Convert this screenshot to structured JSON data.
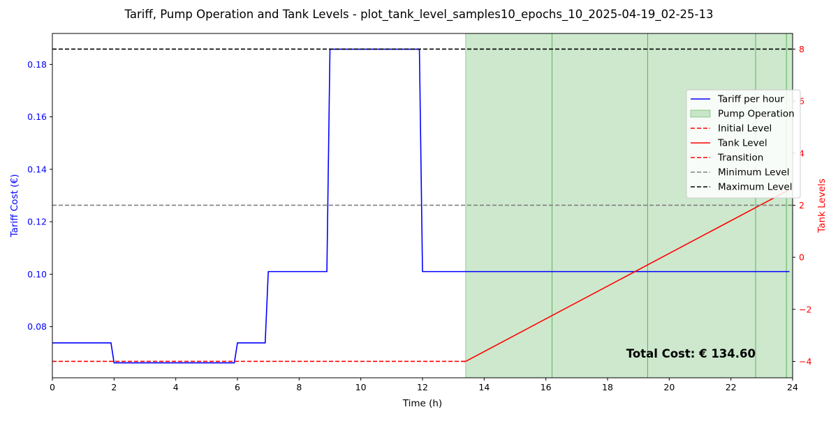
{
  "chart_data": {
    "type": "line",
    "title": "Tariff, Pump Operation and Tank Levels - plot_tank_level_samples10_epochs_10_2025-04-19_02-25-13",
    "xlabel": "Time (h)",
    "ylabel_left": "Tariff Cost (€)",
    "ylabel_right": "Tank Levels",
    "xlim": [
      0,
      24
    ],
    "ylim_left": [
      0.0605,
      0.1918
    ],
    "ylim_right": [
      -4.63,
      8.6
    ],
    "x_ticks": [
      "0",
      "2",
      "4",
      "6",
      "8",
      "10",
      "12",
      "14",
      "16",
      "18",
      "20",
      "22",
      "24"
    ],
    "y_ticks_left": [
      "0.08",
      "0.10",
      "0.12",
      "0.14",
      "0.16",
      "0.18"
    ],
    "y_ticks_right": [
      "−4",
      "−2",
      "0",
      "2",
      "4",
      "6",
      "8"
    ],
    "grid": false,
    "legend_position": "right",
    "colors": {
      "tariff": "#0000ff",
      "pump": "#2ca02c",
      "tank": "#ff0000",
      "minimum": "#808080",
      "maximum": "#000000",
      "left_axis": "#0000ff",
      "right_axis": "#ff0000"
    },
    "series": [
      {
        "name": "Tariff per hour",
        "axis": "left",
        "style": "solid",
        "x": [
          0,
          1.9,
          2.0,
          5.9,
          6.0,
          6.9,
          7.0,
          8.9,
          9.0,
          11.9,
          12.0,
          23.9
        ],
        "y": [
          0.0738,
          0.0738,
          0.0662,
          0.0662,
          0.0738,
          0.0738,
          0.101,
          0.101,
          0.1858,
          0.1858,
          0.101,
          0.101
        ]
      },
      {
        "name": "Initial Level",
        "axis": "right",
        "style": "dashed",
        "x": [
          0,
          13.4
        ],
        "y": [
          -4,
          -4
        ]
      },
      {
        "name": "Tank Level",
        "axis": "right",
        "style": "solid",
        "x": [
          13.4,
          23.9
        ],
        "y": [
          -4,
          2.6
        ]
      },
      {
        "name": "Transition",
        "axis": "right",
        "style": "dashed",
        "x": [
          13.3,
          13.4
        ],
        "y": [
          -4,
          -4
        ]
      },
      {
        "name": "Minimum Level",
        "axis": "right",
        "style": "dashed",
        "constant": 2
      },
      {
        "name": "Maximum Level",
        "axis": "right",
        "style": "dashed",
        "constant": 8
      }
    ],
    "pump_operation": {
      "name": "Pump Operation",
      "intervals": [
        [
          13.4,
          16.2
        ],
        [
          16.2,
          19.3
        ],
        [
          19.3,
          22.8
        ],
        [
          22.8,
          23.8
        ],
        [
          23.8,
          24
        ]
      ]
    },
    "annotation": "Total Cost: € 134.60",
    "legend": [
      "Tariff per hour",
      "Pump Operation",
      "Initial Level",
      "Tank Level",
      "Transition",
      "Minimum Level",
      "Maximum Level"
    ]
  }
}
